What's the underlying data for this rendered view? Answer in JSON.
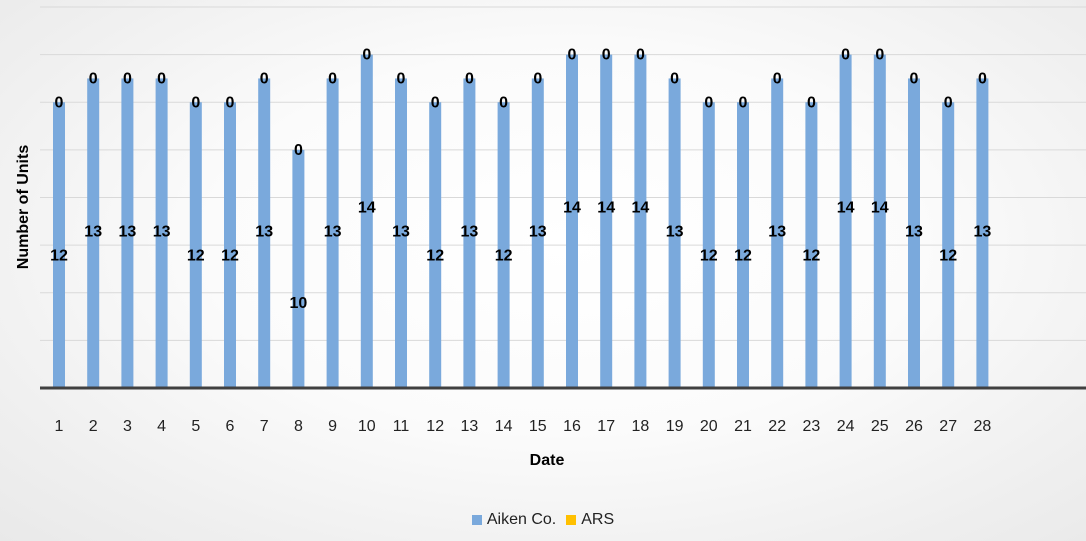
{
  "chart_data": {
    "type": "bar",
    "title": "",
    "xlabel": "Date",
    "ylabel": "Number of Units",
    "categories": [
      "1",
      "2",
      "3",
      "4",
      "5",
      "6",
      "7",
      "8",
      "9",
      "10",
      "11",
      "12",
      "13",
      "14",
      "15",
      "16",
      "17",
      "18",
      "19",
      "20",
      "21",
      "22",
      "23",
      "24",
      "25",
      "26",
      "27",
      "28"
    ],
    "series": [
      {
        "name": "Aiken Co.",
        "color": "#7aa9dc",
        "values": [
          12,
          13,
          13,
          13,
          12,
          12,
          13,
          10,
          13,
          14,
          13,
          12,
          13,
          12,
          13,
          14,
          14,
          14,
          13,
          12,
          12,
          13,
          12,
          14,
          14,
          13,
          12,
          13
        ]
      },
      {
        "name": "ARS",
        "color": "#ffc000",
        "values": [
          0,
          0,
          0,
          0,
          0,
          0,
          0,
          0,
          0,
          0,
          0,
          0,
          0,
          0,
          0,
          0,
          0,
          0,
          0,
          0,
          0,
          0,
          0,
          0,
          0,
          0,
          0,
          0
        ]
      }
    ],
    "ylim": [
      0,
      16
    ],
    "grid": true,
    "legend_position": "bottom"
  }
}
